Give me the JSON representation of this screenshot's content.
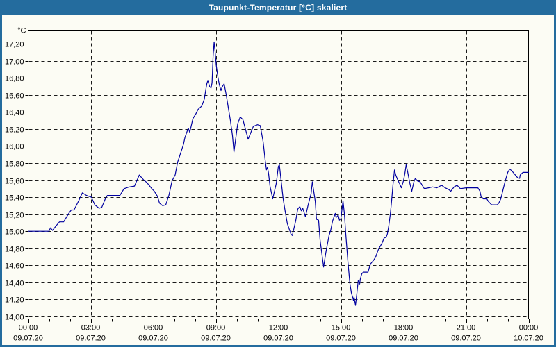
{
  "window": {
    "title": "Taupunkt-Temperatur [°C] skaliert"
  },
  "colors": {
    "titlebar_bg": "#246C9E",
    "window_border": "#246C9E",
    "background": "#FCFCF4",
    "title_text": "#FFFFFF",
    "plot_border": "#000000",
    "gridline": "#1A1A1A",
    "tick_color": "#000000",
    "label_text": "#000000",
    "line": "#0000A0"
  },
  "y_axis": {
    "unit_label": "°C",
    "tick_labels": [
      "17,20",
      "17,00",
      "16,80",
      "16,60",
      "16,40",
      "16,20",
      "16,00",
      "15,80",
      "15,60",
      "15,40",
      "15,20",
      "15,00",
      "14,80",
      "14,60",
      "14,40",
      "14,20",
      "14,00"
    ],
    "tick_values": [
      17.2,
      17.0,
      16.8,
      16.6,
      16.4,
      16.2,
      16.0,
      15.8,
      15.6,
      15.4,
      15.2,
      15.0,
      14.8,
      14.6,
      14.4,
      14.2,
      14.0
    ]
  },
  "x_axis": {
    "tick_labels": [
      {
        "time": "00:00",
        "date": "09.07.20",
        "hour": 0
      },
      {
        "time": "03:00",
        "date": "09.07.20",
        "hour": 3
      },
      {
        "time": "06:00",
        "date": "09.07.20",
        "hour": 6
      },
      {
        "time": "09:00",
        "date": "09.07.20",
        "hour": 9
      },
      {
        "time": "12:00",
        "date": "09.07.20",
        "hour": 12
      },
      {
        "time": "15:00",
        "date": "09.07.20",
        "hour": 15
      },
      {
        "time": "18:00",
        "date": "09.07.20",
        "hour": 18
      },
      {
        "time": "21:00",
        "date": "09.07.20",
        "hour": 21
      },
      {
        "time": "00:00",
        "date": "10.07.20",
        "hour": 24
      }
    ],
    "minor_tick_every_hours": 1,
    "major_tick_every_hours": 3
  },
  "chart_data": {
    "type": "line",
    "title": "Taupunkt-Temperatur [°C] skaliert",
    "xlabel": "",
    "ylabel": "°C",
    "x_unit": "hours",
    "xlim": [
      0,
      24
    ],
    "ylim": [
      14.0,
      17.2
    ],
    "grid": true,
    "legend_position": "none",
    "series": [
      {
        "name": "Taupunkt-Temperatur [°C]",
        "color": "#0000A0",
        "points": [
          [
            0,
            15
          ],
          [
            1,
            15
          ],
          [
            1.07,
            15.04
          ],
          [
            1.17,
            15.01
          ],
          [
            1.33,
            15.06
          ],
          [
            1.5,
            15.11
          ],
          [
            1.7,
            15.11
          ],
          [
            1.95,
            15.21
          ],
          [
            2.07,
            15.25
          ],
          [
            2.2,
            15.25
          ],
          [
            2.43,
            15.36
          ],
          [
            2.6,
            15.45
          ],
          [
            2.8,
            15.42
          ],
          [
            3.03,
            15.4
          ],
          [
            3.2,
            15.31
          ],
          [
            3.4,
            15.27
          ],
          [
            3.53,
            15.28
          ],
          [
            3.7,
            15.38
          ],
          [
            3.8,
            15.42
          ],
          [
            4.4,
            15.42
          ],
          [
            4.6,
            15.5
          ],
          [
            4.85,
            15.52
          ],
          [
            5.1,
            15.53
          ],
          [
            5.33,
            15.66
          ],
          [
            5.55,
            15.6
          ],
          [
            5.7,
            15.57
          ],
          [
            5.93,
            15.5
          ],
          [
            6.05,
            15.47
          ],
          [
            6.2,
            15.41
          ],
          [
            6.3,
            15.33
          ],
          [
            6.45,
            15.3
          ],
          [
            6.6,
            15.31
          ],
          [
            6.75,
            15.42
          ],
          [
            6.9,
            15.59
          ],
          [
            7.05,
            15.66
          ],
          [
            7.17,
            15.81
          ],
          [
            7.25,
            15.87
          ],
          [
            7.45,
            16.02
          ],
          [
            7.52,
            16.1
          ],
          [
            7.68,
            16.21
          ],
          [
            7.75,
            16.16
          ],
          [
            7.9,
            16.32
          ],
          [
            8.05,
            16.38
          ],
          [
            8.15,
            16.43
          ],
          [
            8.33,
            16.47
          ],
          [
            8.45,
            16.55
          ],
          [
            8.52,
            16.66
          ],
          [
            8.57,
            16.73
          ],
          [
            8.62,
            16.77
          ],
          [
            8.7,
            16.7
          ],
          [
            8.77,
            16.68
          ],
          [
            8.82,
            16.74
          ],
          [
            8.87,
            17.05
          ],
          [
            8.92,
            17.22
          ],
          [
            8.97,
            17.1
          ],
          [
            9.02,
            16.95
          ],
          [
            9.1,
            16.81
          ],
          [
            9.17,
            16.72
          ],
          [
            9.25,
            16.65
          ],
          [
            9.3,
            16.69
          ],
          [
            9.4,
            16.73
          ],
          [
            9.5,
            16.6
          ],
          [
            9.6,
            16.45
          ],
          [
            9.7,
            16.3
          ],
          [
            9.8,
            16.12
          ],
          [
            9.87,
            15.93
          ],
          [
            10.05,
            16.26
          ],
          [
            10.17,
            16.34
          ],
          [
            10.3,
            16.31
          ],
          [
            10.55,
            16.08
          ],
          [
            10.8,
            16.23
          ],
          [
            11,
            16.25
          ],
          [
            11.13,
            16.24
          ],
          [
            11.27,
            16.05
          ],
          [
            11.37,
            15.83
          ],
          [
            11.43,
            15.72
          ],
          [
            11.48,
            15.75
          ],
          [
            11.53,
            15.68
          ],
          [
            11.6,
            15.53
          ],
          [
            11.73,
            15.38
          ],
          [
            11.9,
            15.56
          ],
          [
            12,
            15.76
          ],
          [
            12.05,
            15.78
          ],
          [
            12.13,
            15.6
          ],
          [
            12.23,
            15.38
          ],
          [
            12.33,
            15.23
          ],
          [
            12.43,
            15.09
          ],
          [
            12.6,
            14.97
          ],
          [
            12.67,
            14.95
          ],
          [
            12.83,
            15.12
          ],
          [
            12.93,
            15.26
          ],
          [
            13.03,
            15.29
          ],
          [
            13.1,
            15.24
          ],
          [
            13.17,
            15.27
          ],
          [
            13.3,
            15.17
          ],
          [
            13.43,
            15.31
          ],
          [
            13.57,
            15.44
          ],
          [
            13.63,
            15.58
          ],
          [
            13.77,
            15.35
          ],
          [
            13.83,
            15.14
          ],
          [
            13.93,
            15.13
          ],
          [
            14,
            14.9
          ],
          [
            14.17,
            14.58
          ],
          [
            14.27,
            14.74
          ],
          [
            14.33,
            14.82
          ],
          [
            14.43,
            14.95
          ],
          [
            14.5,
            15
          ],
          [
            14.6,
            15.12
          ],
          [
            14.73,
            15.21
          ],
          [
            14.77,
            15.16
          ],
          [
            14.87,
            15.19
          ],
          [
            14.93,
            15.13
          ],
          [
            15,
            15.15
          ],
          [
            15.07,
            15.29
          ],
          [
            15.1,
            15.36
          ],
          [
            15.17,
            15.2
          ],
          [
            15.23,
            14.98
          ],
          [
            15.33,
            14.66
          ],
          [
            15.43,
            14.39
          ],
          [
            15.5,
            14.28
          ],
          [
            15.57,
            14.22
          ],
          [
            15.6,
            14.19
          ],
          [
            15.63,
            14.23
          ],
          [
            15.7,
            14.13
          ],
          [
            15.77,
            14.28
          ],
          [
            15.83,
            14.42
          ],
          [
            15.9,
            14.38
          ],
          [
            15.93,
            14.44
          ],
          [
            16,
            14.5
          ],
          [
            16.07,
            14.52
          ],
          [
            16.3,
            14.52
          ],
          [
            16.37,
            14.58
          ],
          [
            16.43,
            14.62
          ],
          [
            16.57,
            14.66
          ],
          [
            16.67,
            14.7
          ],
          [
            16.77,
            14.77
          ],
          [
            16.83,
            14.8
          ],
          [
            16.97,
            14.86
          ],
          [
            17.07,
            14.92
          ],
          [
            17.17,
            14.93
          ],
          [
            17.23,
            14.97
          ],
          [
            17.3,
            15.07
          ],
          [
            17.37,
            15.2
          ],
          [
            17.43,
            15.35
          ],
          [
            17.5,
            15.55
          ],
          [
            17.57,
            15.72
          ],
          [
            17.63,
            15.66
          ],
          [
            17.73,
            15.6
          ],
          [
            17.83,
            15.55
          ],
          [
            17.9,
            15.51
          ],
          [
            18,
            15.59
          ],
          [
            18.07,
            15.68
          ],
          [
            18.13,
            15.78
          ],
          [
            18.2,
            15.7
          ],
          [
            18.3,
            15.57
          ],
          [
            18.4,
            15.47
          ],
          [
            18.5,
            15.58
          ],
          [
            18.57,
            15.62
          ],
          [
            18.67,
            15.59
          ],
          [
            18.8,
            15.58
          ],
          [
            18.9,
            15.54
          ],
          [
            19,
            15.5
          ],
          [
            19.2,
            15.51
          ],
          [
            19.4,
            15.52
          ],
          [
            19.6,
            15.51
          ],
          [
            19.83,
            15.54
          ],
          [
            20,
            15.51
          ],
          [
            20.17,
            15.49
          ],
          [
            20.27,
            15.47
          ],
          [
            20.43,
            15.52
          ],
          [
            20.57,
            15.54
          ],
          [
            20.73,
            15.5
          ],
          [
            21,
            15.51
          ],
          [
            21.57,
            15.51
          ],
          [
            21.67,
            15.47
          ],
          [
            21.73,
            15.4
          ],
          [
            21.83,
            15.38
          ],
          [
            22,
            15.38
          ],
          [
            22.07,
            15.35
          ],
          [
            22.23,
            15.31
          ],
          [
            22.5,
            15.31
          ],
          [
            22.57,
            15.33
          ],
          [
            22.67,
            15.38
          ],
          [
            22.77,
            15.48
          ],
          [
            22.87,
            15.58
          ],
          [
            23,
            15.69
          ],
          [
            23.1,
            15.73
          ],
          [
            23.23,
            15.7
          ],
          [
            23.33,
            15.67
          ],
          [
            23.47,
            15.63
          ],
          [
            23.57,
            15.62
          ],
          [
            23.6,
            15.66
          ],
          [
            23.73,
            15.69
          ],
          [
            24,
            15.69
          ]
        ]
      }
    ]
  }
}
